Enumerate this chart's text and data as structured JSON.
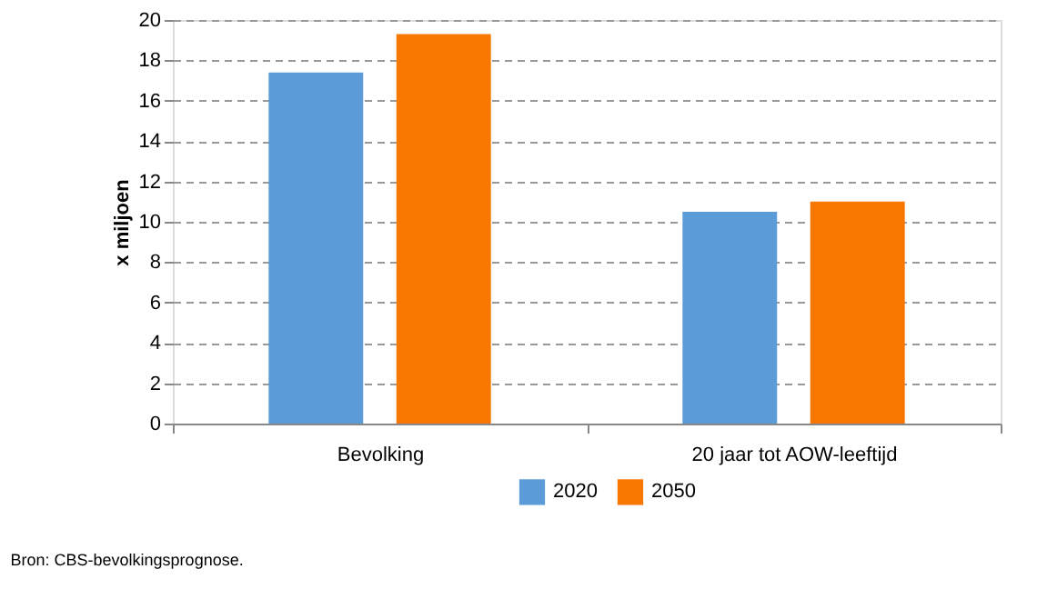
{
  "chart_data": {
    "type": "bar",
    "ylabel": "x miljoen",
    "categories": [
      "Bevolking",
      "20 jaar tot AOW-leeftijd"
    ],
    "series": [
      {
        "name": "2020",
        "color": "#5b9bd8",
        "values": [
          17.4,
          10.5
        ]
      },
      {
        "name": "2050",
        "color": "#f77700",
        "values": [
          19.3,
          11.0
        ]
      }
    ],
    "ylim": [
      0,
      20
    ],
    "yticks": [
      0,
      2,
      4,
      6,
      8,
      10,
      12,
      14,
      16,
      18,
      20
    ],
    "grid": "y",
    "legend": "bottom",
    "annotations": [
      "Bron: CBS-bevolkingsprognose."
    ]
  }
}
